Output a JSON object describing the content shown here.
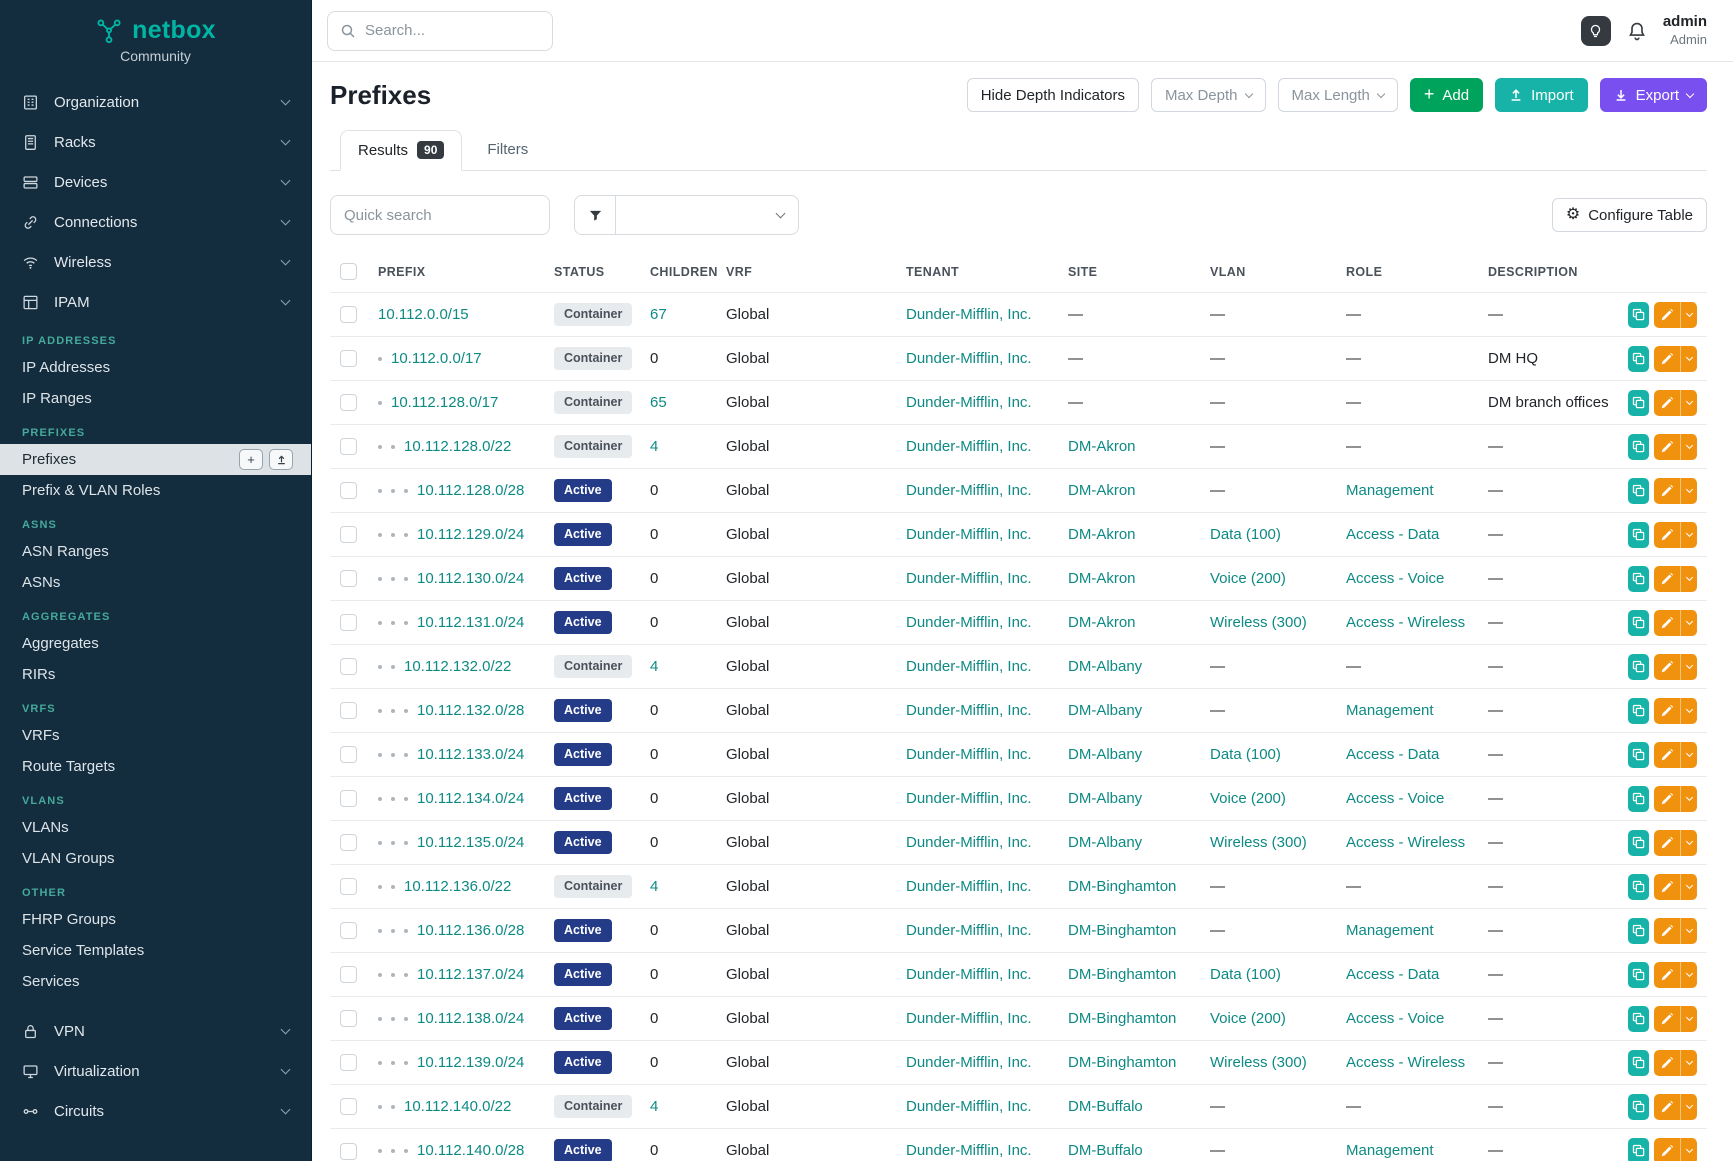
{
  "colors": {
    "accent_teal": "#00b5a3",
    "link_teal": "#0e8a84",
    "sidebar_bg": "#132c3e",
    "status_active_bg": "#243b87",
    "status_container_bg": "#e8ebee",
    "add_green": "#00a35c",
    "import_teal": "#17b3a8",
    "export_purple": "#7a4ff0",
    "edit_orange": "#f0920e"
  },
  "sidebar": {
    "logo_text": "netbox",
    "logo_subtext": "Community",
    "main_items": [
      {
        "label": "Organization"
      },
      {
        "label": "Racks"
      },
      {
        "label": "Devices"
      },
      {
        "label": "Connections"
      },
      {
        "label": "Wireless"
      },
      {
        "label": "IPAM"
      }
    ],
    "sections": [
      {
        "heading": "IP ADDRESSES",
        "items": [
          {
            "label": "IP Addresses"
          },
          {
            "label": "IP Ranges"
          }
        ]
      },
      {
        "heading": "PREFIXES",
        "items": [
          {
            "label": "Prefixes",
            "active": true
          },
          {
            "label": "Prefix & VLAN Roles"
          }
        ]
      },
      {
        "heading": "ASNS",
        "items": [
          {
            "label": "ASN Ranges"
          },
          {
            "label": "ASNs"
          }
        ]
      },
      {
        "heading": "AGGREGATES",
        "items": [
          {
            "label": "Aggregates"
          },
          {
            "label": "RIRs"
          }
        ]
      },
      {
        "heading": "VRFS",
        "items": [
          {
            "label": "VRFs"
          },
          {
            "label": "Route Targets"
          }
        ]
      },
      {
        "heading": "VLANS",
        "items": [
          {
            "label": "VLANs"
          },
          {
            "label": "VLAN Groups"
          }
        ]
      },
      {
        "heading": "OTHER",
        "items": [
          {
            "label": "FHRP Groups"
          },
          {
            "label": "Service Templates"
          },
          {
            "label": "Services"
          }
        ]
      }
    ],
    "bottom_items": [
      {
        "label": "VPN"
      },
      {
        "label": "Virtualization"
      },
      {
        "label": "Circuits"
      }
    ]
  },
  "topbar": {
    "search_placeholder": "Search...",
    "user_name": "admin",
    "user_role": "Admin"
  },
  "page": {
    "title": "Prefixes",
    "controls": {
      "hide_depth_label": "Hide Depth Indicators",
      "max_depth_label": "Max Depth",
      "max_length_label": "Max Length",
      "add_label": "Add",
      "import_label": "Import",
      "export_label": "Export"
    },
    "tabs": [
      {
        "label": "Results",
        "badge": "90"
      },
      {
        "label": "Filters"
      }
    ],
    "quick_search_placeholder": "Quick search",
    "configure_table_label": "Configure Table"
  },
  "table": {
    "headers": [
      "PREFIX",
      "STATUS",
      "CHILDREN",
      "VRF",
      "TENANT",
      "SITE",
      "VLAN",
      "ROLE",
      "DESCRIPTION"
    ],
    "rows": [
      {
        "depth": 0,
        "prefix": "10.112.0.0/15",
        "status": "Container",
        "children": "67",
        "vrf": "Global",
        "tenant": "Dunder-Mifflin, Inc.",
        "site": "—",
        "vlan": "—",
        "role": "—",
        "description": "—"
      },
      {
        "depth": 1,
        "prefix": "10.112.0.0/17",
        "status": "Container",
        "children": "0",
        "vrf": "Global",
        "tenant": "Dunder-Mifflin, Inc.",
        "site": "—",
        "vlan": "—",
        "role": "—",
        "description": "DM HQ"
      },
      {
        "depth": 1,
        "prefix": "10.112.128.0/17",
        "status": "Container",
        "children": "65",
        "vrf": "Global",
        "tenant": "Dunder-Mifflin, Inc.",
        "site": "—",
        "vlan": "—",
        "role": "—",
        "description": "DM branch offices"
      },
      {
        "depth": 2,
        "prefix": "10.112.128.0/22",
        "status": "Container",
        "children": "4",
        "vrf": "Global",
        "tenant": "Dunder-Mifflin, Inc.",
        "site": "DM-Akron",
        "vlan": "—",
        "role": "—",
        "description": "—"
      },
      {
        "depth": 3,
        "prefix": "10.112.128.0/28",
        "status": "Active",
        "children": "0",
        "vrf": "Global",
        "tenant": "Dunder-Mifflin, Inc.",
        "site": "DM-Akron",
        "vlan": "—",
        "role": "Management",
        "description": "—"
      },
      {
        "depth": 3,
        "prefix": "10.112.129.0/24",
        "status": "Active",
        "children": "0",
        "vrf": "Global",
        "tenant": "Dunder-Mifflin, Inc.",
        "site": "DM-Akron",
        "vlan": "Data (100)",
        "role": "Access - Data",
        "description": "—"
      },
      {
        "depth": 3,
        "prefix": "10.112.130.0/24",
        "status": "Active",
        "children": "0",
        "vrf": "Global",
        "tenant": "Dunder-Mifflin, Inc.",
        "site": "DM-Akron",
        "vlan": "Voice (200)",
        "role": "Access - Voice",
        "description": "—"
      },
      {
        "depth": 3,
        "prefix": "10.112.131.0/24",
        "status": "Active",
        "children": "0",
        "vrf": "Global",
        "tenant": "Dunder-Mifflin, Inc.",
        "site": "DM-Akron",
        "vlan": "Wireless (300)",
        "role": "Access - Wireless",
        "description": "—"
      },
      {
        "depth": 2,
        "prefix": "10.112.132.0/22",
        "status": "Container",
        "children": "4",
        "vrf": "Global",
        "tenant": "Dunder-Mifflin, Inc.",
        "site": "DM-Albany",
        "vlan": "—",
        "role": "—",
        "description": "—"
      },
      {
        "depth": 3,
        "prefix": "10.112.132.0/28",
        "status": "Active",
        "children": "0",
        "vrf": "Global",
        "tenant": "Dunder-Mifflin, Inc.",
        "site": "DM-Albany",
        "vlan": "—",
        "role": "Management",
        "description": "—"
      },
      {
        "depth": 3,
        "prefix": "10.112.133.0/24",
        "status": "Active",
        "children": "0",
        "vrf": "Global",
        "tenant": "Dunder-Mifflin, Inc.",
        "site": "DM-Albany",
        "vlan": "Data (100)",
        "role": "Access - Data",
        "description": "—"
      },
      {
        "depth": 3,
        "prefix": "10.112.134.0/24",
        "status": "Active",
        "children": "0",
        "vrf": "Global",
        "tenant": "Dunder-Mifflin, Inc.",
        "site": "DM-Albany",
        "vlan": "Voice (200)",
        "role": "Access - Voice",
        "description": "—"
      },
      {
        "depth": 3,
        "prefix": "10.112.135.0/24",
        "status": "Active",
        "children": "0",
        "vrf": "Global",
        "tenant": "Dunder-Mifflin, Inc.",
        "site": "DM-Albany",
        "vlan": "Wireless (300)",
        "role": "Access - Wireless",
        "description": "—"
      },
      {
        "depth": 2,
        "prefix": "10.112.136.0/22",
        "status": "Container",
        "children": "4",
        "vrf": "Global",
        "tenant": "Dunder-Mifflin, Inc.",
        "site": "DM-Binghamton",
        "vlan": "—",
        "role": "—",
        "description": "—"
      },
      {
        "depth": 3,
        "prefix": "10.112.136.0/28",
        "status": "Active",
        "children": "0",
        "vrf": "Global",
        "tenant": "Dunder-Mifflin, Inc.",
        "site": "DM-Binghamton",
        "vlan": "—",
        "role": "Management",
        "description": "—"
      },
      {
        "depth": 3,
        "prefix": "10.112.137.0/24",
        "status": "Active",
        "children": "0",
        "vrf": "Global",
        "tenant": "Dunder-Mifflin, Inc.",
        "site": "DM-Binghamton",
        "vlan": "Data (100)",
        "role": "Access - Data",
        "description": "—"
      },
      {
        "depth": 3,
        "prefix": "10.112.138.0/24",
        "status": "Active",
        "children": "0",
        "vrf": "Global",
        "tenant": "Dunder-Mifflin, Inc.",
        "site": "DM-Binghamton",
        "vlan": "Voice (200)",
        "role": "Access - Voice",
        "description": "—"
      },
      {
        "depth": 3,
        "prefix": "10.112.139.0/24",
        "status": "Active",
        "children": "0",
        "vrf": "Global",
        "tenant": "Dunder-Mifflin, Inc.",
        "site": "DM-Binghamton",
        "vlan": "Wireless (300)",
        "role": "Access - Wireless",
        "description": "—"
      },
      {
        "depth": 2,
        "prefix": "10.112.140.0/22",
        "status": "Container",
        "children": "4",
        "vrf": "Global",
        "tenant": "Dunder-Mifflin, Inc.",
        "site": "DM-Buffalo",
        "vlan": "—",
        "role": "—",
        "description": "—"
      },
      {
        "depth": 3,
        "prefix": "10.112.140.0/28",
        "status": "Active",
        "children": "0",
        "vrf": "Global",
        "tenant": "Dunder-Mifflin, Inc.",
        "site": "DM-Buffalo",
        "vlan": "—",
        "role": "Management",
        "description": "—"
      }
    ]
  }
}
